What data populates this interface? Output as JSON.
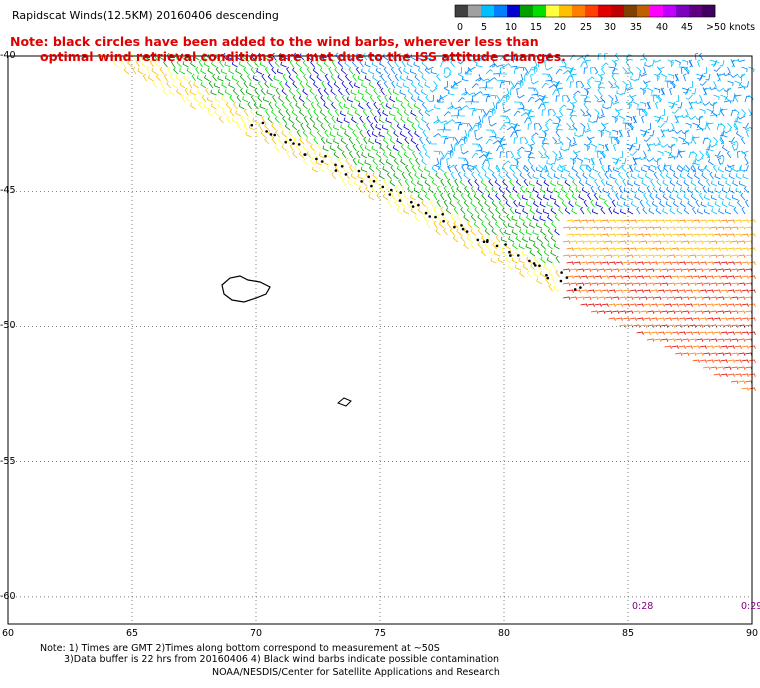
{
  "title": "Rapidscat Winds(12.5KM) 20160406 descending",
  "note": {
    "line1": "Note: black circles have been added to the wind barbs, wherever less than",
    "line2": "optimal wind retrieval conditions are met due to the ISS attitude changes."
  },
  "colorbar": {
    "unit_label": ">50 knots",
    "labels": [
      "0",
      "5",
      "10",
      "15",
      "20",
      "25",
      "30",
      "35",
      "40",
      "45"
    ],
    "colors": [
      "#404040",
      "#a0a0a0",
      "#00c0ff",
      "#0080ff",
      "#0000d0",
      "#00a000",
      "#00e000",
      "#ffff40",
      "#ffc000",
      "#ff8000",
      "#ff4000",
      "#e00000",
      "#c00000",
      "#804000",
      "#c06000",
      "#ff00ff",
      "#c000ff",
      "#8000c0",
      "#600080",
      "#400060"
    ]
  },
  "map": {
    "lon_ticks": [
      "60",
      "65",
      "70",
      "75",
      "80",
      "85",
      "90"
    ],
    "lat_ticks": [
      "-40",
      "-45",
      "-50",
      "-55",
      "-60"
    ],
    "lon_range": [
      60,
      90
    ],
    "lat_range": [
      -40,
      -61
    ],
    "grid": true,
    "time_labels": [
      "0:28",
      "0:29"
    ]
  },
  "footer": {
    "line1": "Note: 1) Times are GMT 2)Times along bottom correspond to measurement at ~50S",
    "line2": "3)Data buffer is 22 hrs from 20160406 4) Black wind barbs indicate possible contamination",
    "line3": "NOAA/NESDIS/Center for Satellite Applications and Research"
  }
}
